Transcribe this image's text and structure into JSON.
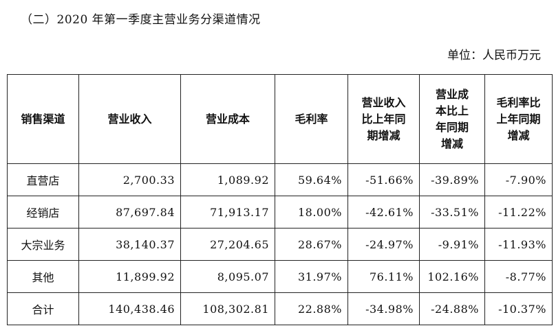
{
  "title": "（二）2020 年第一季度主营业务分渠道情况",
  "unit": "单位：人民币万元",
  "table": {
    "headers": [
      "销售渠道",
      "营业收入",
      "营业成本",
      "毛利率",
      "营业收入\n比上年同\n期增减",
      "营业成\n本比上\n年同期\n增减",
      "毛利率比\n上年同期\n增减"
    ],
    "rows": [
      [
        "直营店",
        "2,700.33",
        "1,089.92",
        "59.64%",
        "-51.66%",
        "-39.89%",
        "-7.90%"
      ],
      [
        "经销店",
        "87,697.84",
        "71,913.17",
        "18.00%",
        "-42.61%",
        "-33.51%",
        "-11.22%"
      ],
      [
        "大宗业务",
        "38,140.37",
        "27,204.65",
        "28.67%",
        "-24.97%",
        "-9.91%",
        "-11.93%"
      ],
      [
        "其他",
        "11,899.92",
        "8,095.07",
        "31.97%",
        "76.11%",
        "102.16%",
        "-8.77%"
      ],
      [
        "合计",
        "140,438.46",
        "108,302.81",
        "22.88%",
        "-34.98%",
        "-24.88%",
        "-10.37%"
      ]
    ]
  }
}
